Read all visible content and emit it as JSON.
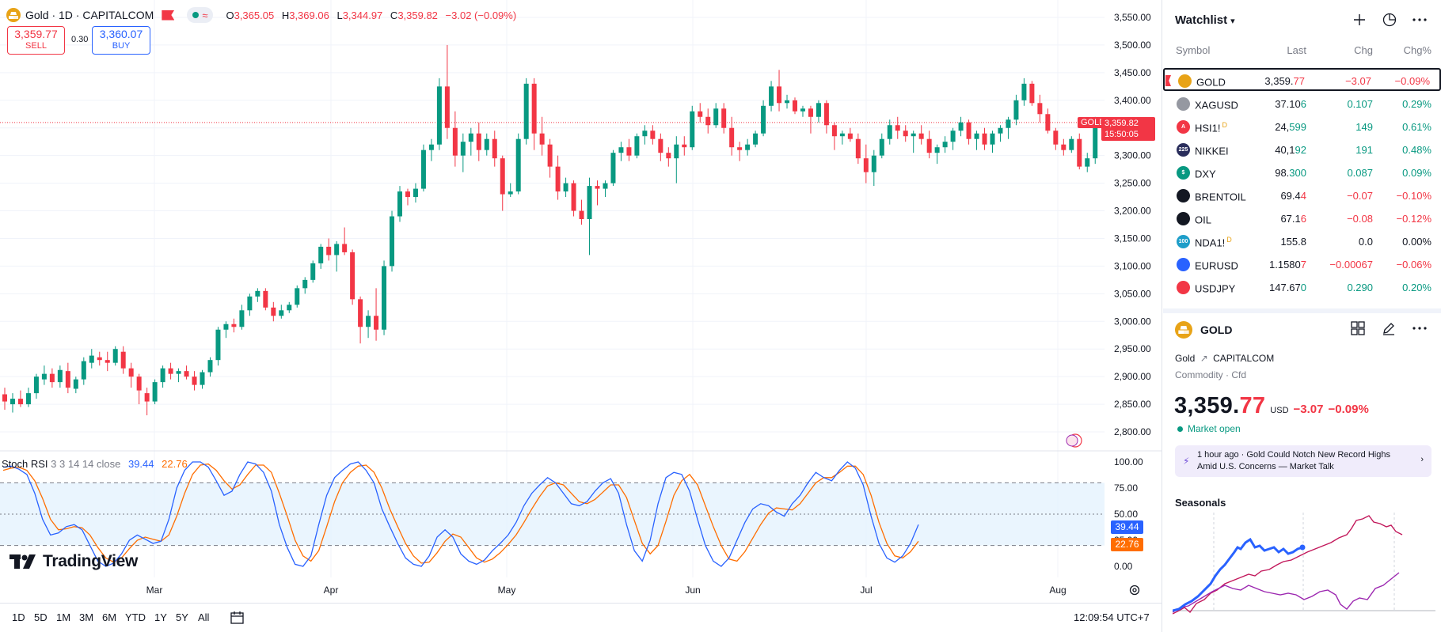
{
  "header": {
    "title": "Gold · 1D · CAPITALCOM",
    "open_label": "O",
    "open": "3,365.05",
    "high_label": "H",
    "high": "3,369.06",
    "low_label": "L",
    "low": "3,344.97",
    "close_label": "C",
    "close": "3,359.82",
    "change": "−3.02 (−0.09%)",
    "wave_icon": "≈"
  },
  "trade": {
    "sell_price": "3,359.77",
    "sell_label": "SELL",
    "spread": "0.30",
    "buy_price": "3,360.07",
    "buy_label": "BUY"
  },
  "price_axis": {
    "labels": [
      "3,550.00",
      "3,500.00",
      "3,450.00",
      "3,400.00",
      "3,350.00",
      "3,300.00",
      "3,250.00",
      "3,200.00",
      "3,150.00",
      "3,100.00",
      "3,050.00",
      "3,000.00",
      "2,950.00",
      "2,900.00",
      "2,850.00",
      "2,800.00"
    ],
    "current_price": "3,359.82",
    "countdown": "15:50:05",
    "symbol_tag": "GOLD"
  },
  "time_axis": [
    "Mar",
    "Apr",
    "May",
    "Jun",
    "Jul",
    "Aug"
  ],
  "stoch": {
    "name": "Stoch RSI",
    "params": "3 3 14 14 close",
    "k_value": "39.44",
    "d_value": "22.76",
    "axis_labels": [
      "100.00",
      "75.00",
      "50.00",
      "25.00",
      "0.00"
    ]
  },
  "branding": {
    "logo_text": "TradingView"
  },
  "bottom_bar": {
    "timeframes": [
      "1D",
      "5D",
      "1M",
      "3M",
      "6M",
      "YTD",
      "1Y",
      "5Y",
      "All"
    ],
    "clock": "12:09:54 UTC+7"
  },
  "colors": {
    "up": "#089981",
    "down": "#f23645",
    "k_line": "#2962ff",
    "d_line": "#ff6d00",
    "gold": "#e8a317"
  },
  "watchlist": {
    "title": "Watchlist",
    "columns": {
      "symbol": "Symbol",
      "last": "Last",
      "chg": "Chg",
      "pct": "Chg%"
    },
    "rows": [
      {
        "symbol": "GOLD",
        "sup": "",
        "last_main": "3,359.",
        "last_tail": "77",
        "chg": "−3.07",
        "pct": "−0.09%",
        "dir": "dn",
        "icon_color": "#e8a317",
        "icon_text": ""
      },
      {
        "symbol": "XAGUSD",
        "sup": "",
        "last_main": "37.10",
        "last_tail": "6",
        "chg": "0.107",
        "pct": "0.29%",
        "dir": "up",
        "icon_color": "#9598a1",
        "icon_text": ""
      },
      {
        "symbol": "HSI1!",
        "sup": "D",
        "last_main": "24,",
        "last_tail": "599",
        "chg": "149",
        "pct": "0.61%",
        "dir": "up",
        "icon_color": "#f23645",
        "icon_text": "A"
      },
      {
        "symbol": "NIKKEI",
        "sup": "",
        "last_main": "40,1",
        "last_tail": "92",
        "chg": "191",
        "pct": "0.48%",
        "dir": "up",
        "icon_color": "#2a2e5c",
        "icon_text": "225"
      },
      {
        "symbol": "DXY",
        "sup": "",
        "last_main": "98.",
        "last_tail": "300",
        "chg": "0.087",
        "pct": "0.09%",
        "dir": "up",
        "icon_color": "#089981",
        "icon_text": "$"
      },
      {
        "symbol": "BRENTOIL",
        "sup": "",
        "last_main": "69.4",
        "last_tail": "4",
        "chg": "−0.07",
        "pct": "−0.10%",
        "dir": "dn",
        "icon_color": "#131722",
        "icon_text": ""
      },
      {
        "symbol": "OIL",
        "sup": "",
        "last_main": "67.1",
        "last_tail": "6",
        "chg": "−0.08",
        "pct": "−0.12%",
        "dir": "dn",
        "icon_color": "#131722",
        "icon_text": ""
      },
      {
        "symbol": "NDA1!",
        "sup": "D",
        "last_main": "155.8",
        "last_tail": "",
        "chg": "0.0",
        "pct": "0.00%",
        "dir": "neu",
        "icon_color": "#1e9ec9",
        "icon_text": "100"
      },
      {
        "symbol": "EURUSD",
        "sup": "",
        "last_main": "1.1580",
        "last_tail": "7",
        "chg": "−0.00067",
        "pct": "−0.06%",
        "dir": "dn",
        "icon_color": "#2962ff",
        "icon_text": ""
      },
      {
        "symbol": "USDJPY",
        "sup": "",
        "last_main": "147.67",
        "last_tail": "0",
        "chg": "0.290",
        "pct": "0.20%",
        "dir": "up",
        "icon_color": "#f23645",
        "icon_text": ""
      }
    ]
  },
  "details": {
    "symbol": "GOLD",
    "name": "Gold",
    "exchange": "CAPITALCOM",
    "category": "Commodity · Cfd",
    "price_main": "3,359.",
    "price_tail": "77",
    "currency": "USD",
    "change": "−3.07",
    "change_pct": "−0.09%",
    "status": "Market open",
    "news_time": "1 hour ago",
    "news_title": "Gold Could Notch New Record Highs Amid U.S. Concerns — Market Talk",
    "seasonals_label": "Seasonals"
  }
}
